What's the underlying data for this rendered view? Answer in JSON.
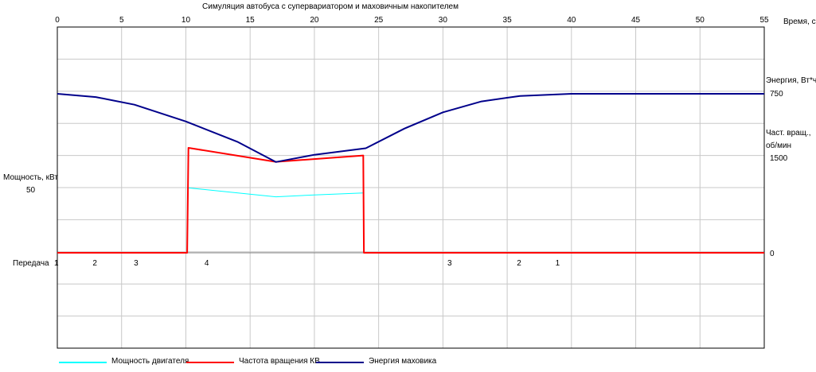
{
  "chart_data": {
    "type": "line",
    "title": "Симуляция автобуса с супервариатором и маховичным накопителем",
    "x_label": "Время, с",
    "x_ticks": [
      "0",
      "5",
      "10",
      "15",
      "20",
      "25",
      "30",
      "35",
      "40",
      "45",
      "50",
      "55"
    ],
    "xlim": [
      0,
      55
    ],
    "grid": true,
    "left_axis": {
      "label": "Мощность, кВт",
      "tick": "50"
    },
    "right_axis": {
      "energy_label": "Энергия, Вт*ч",
      "energy_tick": "750",
      "speed_label_1": "Част. вращ.,",
      "speed_label_2": "об/мин",
      "speed_tick": "1500",
      "zero_tick": "0"
    },
    "gear": {
      "label": "Передача",
      "marks": [
        {
          "t": 0,
          "value": "1"
        },
        {
          "t": 3,
          "value": "2"
        },
        {
          "t": 6.2,
          "value": "3"
        },
        {
          "t": 11.7,
          "value": "4"
        },
        {
          "t": 30.6,
          "value": "3"
        },
        {
          "t": 36,
          "value": "2"
        },
        {
          "t": 39,
          "value": "1"
        }
      ]
    },
    "series": [
      {
        "name": "Мощность двигателя",
        "color": "#00ffff",
        "unit": "kW",
        "points": [
          [
            10.2,
            51
          ],
          [
            17,
            44
          ],
          [
            20,
            45.5
          ],
          [
            23.8,
            47
          ]
        ]
      },
      {
        "name": "Частота вращения КВ",
        "color": "#ff0000",
        "unit": "rpm",
        "points": [
          [
            0,
            0
          ],
          [
            10.1,
            0
          ],
          [
            10.2,
            1650
          ],
          [
            17,
            1430
          ],
          [
            23.8,
            1530
          ],
          [
            23.85,
            0
          ],
          [
            55,
            0
          ]
        ]
      },
      {
        "name": "Энергия маховика",
        "color": "#00008b",
        "unit": "Wh",
        "points": [
          [
            0,
            750
          ],
          [
            3,
            735
          ],
          [
            6,
            700
          ],
          [
            10,
            623
          ],
          [
            14,
            530
          ],
          [
            17,
            437
          ],
          [
            20,
            470
          ],
          [
            24,
            500
          ],
          [
            27,
            590
          ],
          [
            30,
            665
          ],
          [
            33,
            715
          ],
          [
            36,
            740
          ],
          [
            40,
            750
          ],
          [
            55,
            750
          ]
        ]
      }
    ]
  }
}
